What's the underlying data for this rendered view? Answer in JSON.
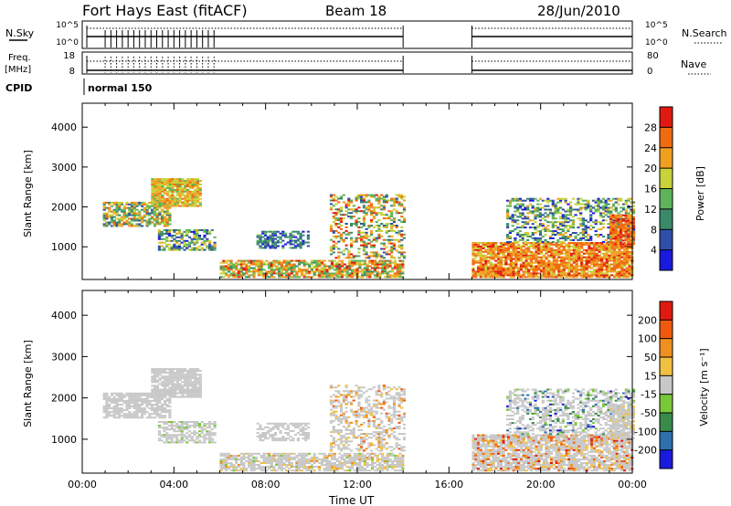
{
  "header": {
    "station": "Fort Hays East (fitACF)",
    "beam": "Beam 18",
    "date": "28/Jun/2010"
  },
  "top_panels": {
    "nsky_label": "N.Sky",
    "nsky_ticks": [
      "10^5",
      "10^0"
    ],
    "nsearch_label": "N.Search",
    "nsearch_ticks": [
      "10^5",
      "10^0"
    ],
    "freq_label_1": "Freq.",
    "freq_label_2": "[MHz]",
    "freq_ticks": [
      "18",
      "8"
    ],
    "nave_label": "Nave",
    "nave_ticks": [
      "80",
      "0"
    ],
    "cpid_label": "CPID",
    "cpid_value": "normal 150"
  },
  "colors": {
    "power": [
      "#1a1adc",
      "#2f4fa8",
      "#3a8a6a",
      "#5fb35a",
      "#c8d23a",
      "#f0a020",
      "#f06a10",
      "#e01a10"
    ],
    "velocity": [
      "#1a1adc",
      "#2f6fb0",
      "#3a8a4a",
      "#7ac83a",
      "#c8c8c8",
      "#f0c040",
      "#f09020",
      "#f05a10",
      "#e01a10"
    ]
  },
  "chart_data": [
    {
      "type": "heatmap",
      "name": "power",
      "ylabel": "Slant Range [km]",
      "ylim": [
        180,
        4600
      ],
      "yticks": [
        "1000",
        "2000",
        "3000",
        "4000"
      ],
      "xlim": [
        0,
        24
      ],
      "colorbar": {
        "label": "Power [dB]",
        "ticks": [
          "4",
          "8",
          "12",
          "16",
          "20",
          "24",
          "28"
        ]
      }
    },
    {
      "type": "heatmap",
      "name": "velocity",
      "ylabel": "Slant Range [km]",
      "ylim": [
        180,
        4600
      ],
      "yticks": [
        "1000",
        "2000",
        "3000",
        "4000"
      ],
      "xlim": [
        0,
        24
      ],
      "xticks": [
        "00:00",
        "04:00",
        "08:00",
        "12:00",
        "16:00",
        "20:00",
        "00:00"
      ],
      "xlabel": "Time UT",
      "colorbar": {
        "label": "Velocity [m s⁻¹]",
        "ticks": [
          "200",
          "100",
          "50",
          "15",
          "-15",
          "-50",
          "-100",
          "-200"
        ]
      }
    }
  ]
}
